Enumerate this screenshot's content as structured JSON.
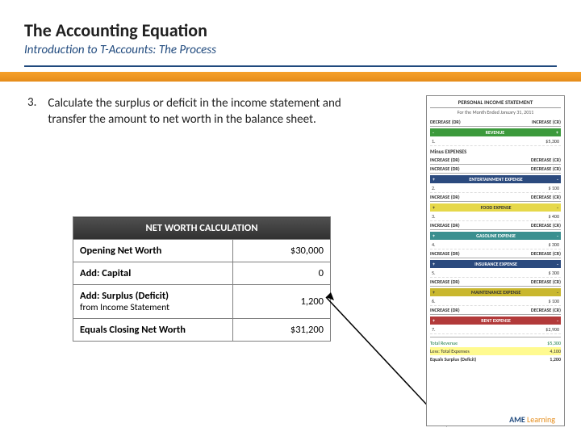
{
  "header": {
    "title": "The Accounting Equation",
    "subtitle": "Introduction to T-Accounts: The Process"
  },
  "bullet": {
    "num": "3.",
    "text": "Calculate the surplus or deficit in the income statement and transfer the amount to net worth in the balance sheet."
  },
  "networth": {
    "header": "NET WORTH CALCULATION",
    "rows": [
      {
        "label": "Opening Net Worth",
        "sub": "",
        "value": "$30,000"
      },
      {
        "label": "Add: Capital",
        "sub": "",
        "value": "0"
      },
      {
        "label": "Add: Surplus (Deficit)",
        "sub": "from Income Statement",
        "value": "1,200"
      },
      {
        "label": "Equals Closing Net Worth",
        "sub": "",
        "value": "$31,200"
      }
    ]
  },
  "panel": {
    "title": "PERSONAL INCOME STATEMENT",
    "subtitle": "For the Month Ended January 31, 2011",
    "dr": "DECREASE (DR)",
    "cr": "INCREASE (CR)",
    "revenue_label": "REVENUE",
    "plus": "+",
    "minus": "-",
    "revenue_row": {
      "num": "1.",
      "amt": "$5,300"
    },
    "minus_expenses": "Minus EXPENSES",
    "exp_dr": "INCREASE (DR)",
    "exp_cr": "DECREASE (CR)",
    "expenses": [
      {
        "color": "navy",
        "label": "ENTERTAINMENT EXPENSE",
        "num": "2.",
        "amt": "$ 100"
      },
      {
        "color": "yellow",
        "label": "FOOD EXPENSE",
        "num": "3.",
        "amt": "$ 400"
      },
      {
        "color": "teal",
        "label": "GASOLINE EXPENSE",
        "num": "4.",
        "amt": "$ 300"
      },
      {
        "color": "navy",
        "label": "INSURANCE EXPENSE",
        "num": "5.",
        "amt": "$ 300"
      },
      {
        "color": "darkyellow",
        "label": "MAINTENANCE EXPENSE",
        "num": "6.",
        "amt": "$ 100"
      },
      {
        "color": "red",
        "label": "RENT EXPENSE",
        "num": "7.",
        "amt": "$2,900"
      }
    ],
    "totals": {
      "rev": {
        "label": "Total Revenue",
        "amt": "$5,300"
      },
      "exp": {
        "label": "Less: Total Expenses",
        "amt": "4,100"
      },
      "surp": {
        "label": "Equals Surplus (Deficit)",
        "amt": "1,200"
      }
    }
  },
  "footer": {
    "brand1": "AME",
    "brand2": "Learning"
  },
  "colors": {
    "accent_blue": "#1f497d",
    "accent_orange": "#e58c1a"
  }
}
